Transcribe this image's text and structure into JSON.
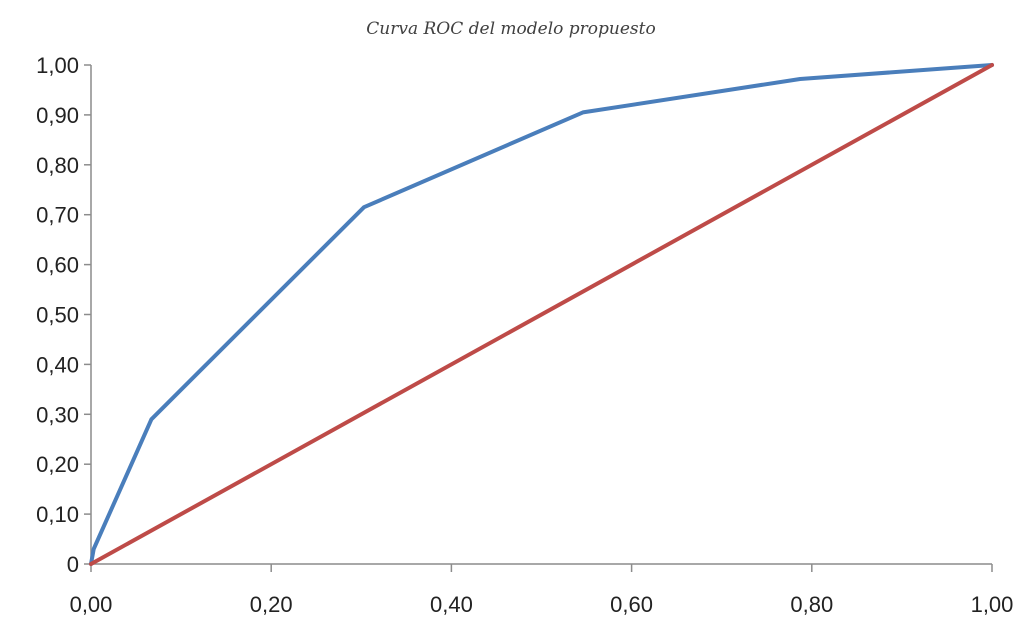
{
  "chart_data": {
    "type": "line",
    "title": "Curva ROC del modelo propuesto",
    "xlabel": "",
    "ylabel": "",
    "xlim": [
      0,
      1
    ],
    "ylim": [
      0,
      1
    ],
    "x_ticks": [
      0,
      0.2,
      0.4,
      0.6,
      0.8,
      1.0
    ],
    "x_tick_labels": [
      "0,00",
      "0,20",
      "0,40",
      "0,60",
      "0,80",
      "1,00"
    ],
    "y_ticks": [
      0,
      0.1,
      0.2,
      0.3,
      0.4,
      0.5,
      0.6,
      0.7,
      0.8,
      0.9,
      1.0
    ],
    "y_tick_labels": [
      "0",
      "0,10",
      "0,20",
      "0,30",
      "0,40",
      "0,50",
      "0,60",
      "0,70",
      "0,80",
      "0,90",
      "1,00"
    ],
    "grid": false,
    "legend": "none",
    "series": [
      {
        "color": "#4a7ebb",
        "x": [
          0,
          0.003,
          0.067,
          0.303,
          0.546,
          0.787,
          1.0
        ],
        "y": [
          0,
          0.03,
          0.29,
          0.715,
          0.905,
          0.972,
          1.0
        ]
      },
      {
        "color": "#be4b48",
        "x": [
          0,
          1.0
        ],
        "y": [
          0,
          1.0
        ]
      }
    ]
  }
}
